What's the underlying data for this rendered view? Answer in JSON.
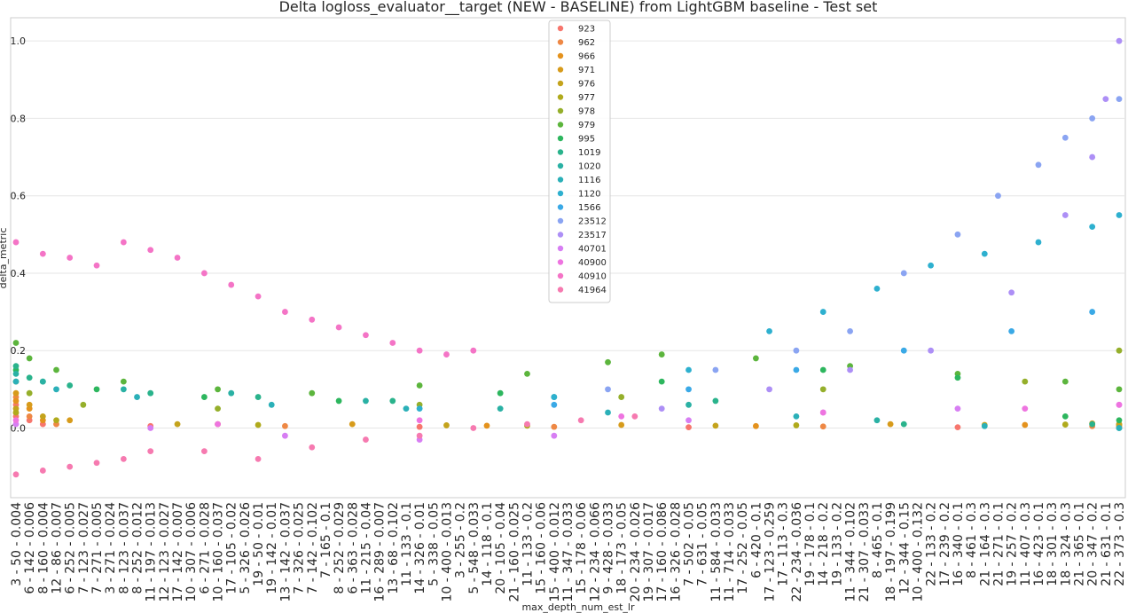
{
  "chart_data": {
    "type": "scatter",
    "title": "Delta logloss_evaluator__target (NEW - BASELINE) from LightGBM baseline - Test set",
    "xlabel": "max_depth_num_est_lr",
    "ylabel": "delta_metric",
    "ylim": [
      -0.18,
      1.06
    ],
    "yticks": [
      0.0,
      0.2,
      0.4,
      0.6,
      0.8,
      1.0
    ],
    "ytick_labels": [
      "0.0",
      "0.2",
      "0.4",
      "0.6",
      "0.8",
      "1.0"
    ],
    "grid": true,
    "legend_position": "top-center",
    "categories": [
      "3 - 50 - 0.004",
      "6 - 142 - 0.006",
      "8 - 160 - 0.004",
      "12 - 86 - 0.007",
      "6 - 252 - 0.005",
      "7 - 123 - 0.027",
      "7 - 271 - 0.005",
      "3 - 271 - 0.024",
      "8 - 123 - 0.037",
      "8 - 252 - 0.012",
      "11 - 197 - 0.013",
      "12 - 123 - 0.027",
      "17 - 142 - 0.007",
      "10 - 307 - 0.006",
      "6 - 271 - 0.028",
      "10 - 160 - 0.037",
      "17 - 105 - 0.02",
      "5 - 326 - 0.026",
      "19 - 50 - 0.01",
      "19 - 142 - 0.01",
      "13 - 142 - 0.037",
      "7 - 326 - 0.025",
      "7 - 142 - 0.102",
      "7 - 165 - 0.1",
      "8 - 252 - 0.029",
      "6 - 363 - 0.028",
      "11 - 215 - 0.04",
      "16 - 289 - 0.007",
      "13 - 68 - 0.102",
      "11 - 133 - 0.1",
      "14 - 326 - 0.01",
      "5 - 338 - 0.05",
      "10 - 400 - 0.013",
      "3 - 255 - 0.2",
      "5 - 548 - 0.033",
      "14 - 118 - 0.1",
      "20 - 105 - 0.04",
      "21 - 160 - 0.025",
      "11 - 133 - 0.2",
      "15 - 160 - 0.06",
      "15 - 400 - 0.012",
      "11 - 347 - 0.033",
      "15 - 178 - 0.06",
      "12 - 234 - 0.066",
      "9 - 428 - 0.033",
      "18 - 173 - 0.05",
      "20 - 234 - 0.026",
      "19 - 307 - 0.017",
      "17 - 160 - 0.086",
      "16 - 326 - 0.028",
      "7 - 502 - 0.05",
      "7 - 631 - 0.05",
      "11 - 584 - 0.033",
      "11 - 714 - 0.033",
      "17 - 252 - 0.05",
      "6 - 420 - 0.1",
      "17 - 123 - 0.259",
      "17 - 113 - 0.3",
      "22 - 234 - 0.036",
      "19 - 178 - 0.1",
      "14 - 218 - 0.2",
      "19 - 133 - 0.2",
      "11 - 344 - 0.102",
      "21 - 307 - 0.033",
      "8 - 465 - 0.1",
      "18 - 197 - 0.199",
      "12 - 344 - 0.15",
      "10 - 400 - 0.132",
      "22 - 133 - 0.2",
      "17 - 239 - 0.2",
      "16 - 340 - 0.1",
      "8 - 461 - 0.3",
      "21 - 164 - 0.3",
      "21 - 271 - 0.1",
      "19 - 257 - 0.2",
      "11 - 407 - 0.3",
      "16 - 423 - 0.1",
      "18 - 301 - 0.3",
      "18 - 324 - 0.3",
      "21 - 365 - 0.1",
      "20 - 347 - 0.2",
      "21 - 631 - 0.1",
      "22 - 373 - 0.3"
    ],
    "series": [
      {
        "name": "923",
        "color": "#f7766d",
        "values": [
          [
            0,
            0.06
          ],
          [
            0,
            0.03
          ],
          [
            1,
            0.02
          ],
          [
            2,
            0.01
          ],
          [
            10,
            0.005
          ],
          [
            30,
            0.003
          ],
          [
            50,
            0.002
          ],
          [
            70,
            0.002
          ],
          [
            82,
            0.003
          ]
        ]
      },
      {
        "name": "962",
        "color": "#ee8845",
        "values": [
          [
            0,
            0.08
          ],
          [
            0,
            0.04
          ],
          [
            1,
            0.03
          ],
          [
            3,
            0.01
          ],
          [
            20,
            0.005
          ],
          [
            40,
            0.003
          ],
          [
            60,
            0.004
          ],
          [
            80,
            0.005
          ],
          [
            82,
            0.006
          ]
        ]
      },
      {
        "name": "966",
        "color": "#e4921d",
        "values": [
          [
            0,
            0.07
          ],
          [
            1,
            0.05
          ],
          [
            2,
            0.02
          ],
          [
            15,
            0.01
          ],
          [
            35,
            0.006
          ],
          [
            55,
            0.005
          ],
          [
            75,
            0.008
          ],
          [
            82,
            0.01
          ]
        ]
      },
      {
        "name": "971",
        "color": "#d79b1b",
        "values": [
          [
            0,
            0.09
          ],
          [
            1,
            0.06
          ],
          [
            4,
            0.02
          ],
          [
            25,
            0.01
          ],
          [
            45,
            0.008
          ],
          [
            65,
            0.01
          ],
          [
            80,
            0.012
          ]
        ]
      },
      {
        "name": "976",
        "color": "#c4a31c",
        "values": [
          [
            0,
            0.05
          ],
          [
            2,
            0.03
          ],
          [
            12,
            0.01
          ],
          [
            32,
            0.007
          ],
          [
            52,
            0.006
          ],
          [
            72,
            0.008
          ],
          [
            82,
            0.009
          ]
        ]
      },
      {
        "name": "977",
        "color": "#b0aa1c",
        "values": [
          [
            0,
            0.04
          ],
          [
            3,
            0.02
          ],
          [
            18,
            0.008
          ],
          [
            38,
            0.006
          ],
          [
            58,
            0.007
          ],
          [
            78,
            0.009
          ]
        ]
      },
      {
        "name": "978",
        "color": "#95af2b",
        "values": [
          [
            0,
            0.12
          ],
          [
            1,
            0.09
          ],
          [
            5,
            0.06
          ],
          [
            15,
            0.05
          ],
          [
            30,
            0.06
          ],
          [
            45,
            0.08
          ],
          [
            60,
            0.1
          ],
          [
            75,
            0.12
          ],
          [
            82,
            0.2
          ]
        ]
      },
      {
        "name": "979",
        "color": "#5cb53d",
        "values": [
          [
            0,
            0.22
          ],
          [
            1,
            0.18
          ],
          [
            3,
            0.15
          ],
          [
            8,
            0.12
          ],
          [
            15,
            0.1
          ],
          [
            22,
            0.09
          ],
          [
            30,
            0.11
          ],
          [
            38,
            0.14
          ],
          [
            44,
            0.17
          ],
          [
            48,
            0.19
          ],
          [
            55,
            0.18
          ],
          [
            62,
            0.16
          ],
          [
            70,
            0.14
          ],
          [
            78,
            0.12
          ],
          [
            82,
            0.1
          ]
        ]
      },
      {
        "name": "995",
        "color": "#2db65e",
        "values": [
          [
            0,
            0.15
          ],
          [
            2,
            0.12
          ],
          [
            6,
            0.1
          ],
          [
            14,
            0.08
          ],
          [
            24,
            0.07
          ],
          [
            36,
            0.09
          ],
          [
            48,
            0.12
          ],
          [
            60,
            0.15
          ],
          [
            70,
            0.13
          ],
          [
            78,
            0.03
          ],
          [
            82,
            0.02
          ]
        ]
      },
      {
        "name": "1019",
        "color": "#2ab38c",
        "values": [
          [
            0,
            0.16
          ],
          [
            1,
            0.13
          ],
          [
            4,
            0.11
          ],
          [
            10,
            0.09
          ],
          [
            18,
            0.08
          ],
          [
            28,
            0.07
          ],
          [
            40,
            0.08
          ],
          [
            52,
            0.07
          ],
          [
            66,
            0.01
          ],
          [
            80,
            0.01
          ]
        ]
      },
      {
        "name": "1020",
        "color": "#2ab1a4",
        "values": [
          [
            0,
            0.14
          ],
          [
            2,
            0.12
          ],
          [
            8,
            0.1
          ],
          [
            16,
            0.09
          ],
          [
            26,
            0.07
          ],
          [
            36,
            0.05
          ],
          [
            50,
            0.06
          ],
          [
            64,
            0.02
          ],
          [
            82,
            0.0
          ]
        ]
      },
      {
        "name": "1116",
        "color": "#2bb0b8",
        "values": [
          [
            0,
            0.12
          ],
          [
            3,
            0.1
          ],
          [
            9,
            0.08
          ],
          [
            19,
            0.06
          ],
          [
            29,
            0.05
          ],
          [
            44,
            0.04
          ],
          [
            58,
            0.03
          ],
          [
            72,
            0.005
          ],
          [
            82,
            0.0
          ]
        ]
      },
      {
        "name": "1120",
        "color": "#2eb0cf",
        "values": [
          [
            30,
            0.05
          ],
          [
            40,
            0.08
          ],
          [
            50,
            0.15
          ],
          [
            56,
            0.25
          ],
          [
            60,
            0.3
          ],
          [
            64,
            0.36
          ],
          [
            68,
            0.42
          ],
          [
            72,
            0.45
          ],
          [
            76,
            0.48
          ],
          [
            80,
            0.52
          ],
          [
            82,
            0.55
          ]
        ]
      },
      {
        "name": "1566",
        "color": "#3aa9e6",
        "values": [
          [
            40,
            0.06
          ],
          [
            50,
            0.1
          ],
          [
            58,
            0.15
          ],
          [
            66,
            0.2
          ],
          [
            74,
            0.25
          ],
          [
            80,
            0.3
          ]
        ]
      },
      {
        "name": "23512",
        "color": "#8aa4f2",
        "values": [
          [
            44,
            0.1
          ],
          [
            52,
            0.15
          ],
          [
            58,
            0.2
          ],
          [
            62,
            0.25
          ],
          [
            66,
            0.4
          ],
          [
            70,
            0.5
          ],
          [
            73,
            0.6
          ],
          [
            76,
            0.68
          ],
          [
            78,
            0.75
          ],
          [
            80,
            0.8
          ],
          [
            82,
            0.85
          ]
        ]
      },
      {
        "name": "23517",
        "color": "#ad8ff6",
        "values": [
          [
            48,
            0.05
          ],
          [
            56,
            0.1
          ],
          [
            62,
            0.15
          ],
          [
            68,
            0.2
          ],
          [
            74,
            0.35
          ],
          [
            78,
            0.55
          ],
          [
            80,
            0.7
          ],
          [
            81,
            0.85
          ],
          [
            82,
            1.0
          ]
        ]
      },
      {
        "name": "40701",
        "color": "#d77ef3",
        "values": [
          [
            0,
            0.01
          ],
          [
            10,
            0.0
          ],
          [
            20,
            -0.02
          ],
          [
            30,
            -0.03
          ],
          [
            40,
            -0.02
          ],
          [
            50,
            0.02
          ],
          [
            60,
            0.04
          ],
          [
            70,
            0.05
          ],
          [
            82,
            0.06
          ]
        ]
      },
      {
        "name": "40900",
        "color": "#ee74e0",
        "values": [
          [
            0,
            0.02
          ],
          [
            15,
            0.01
          ],
          [
            30,
            0.02
          ],
          [
            45,
            0.03
          ],
          [
            60,
            0.04
          ],
          [
            75,
            0.05
          ],
          [
            82,
            0.06
          ]
        ]
      },
      {
        "name": "40910",
        "color": "#f474c6",
        "values": [
          [
            0,
            0.48
          ],
          [
            2,
            0.45
          ],
          [
            4,
            0.44
          ],
          [
            6,
            0.42
          ],
          [
            8,
            0.48
          ],
          [
            10,
            0.46
          ],
          [
            12,
            0.44
          ],
          [
            14,
            0.4
          ],
          [
            16,
            0.37
          ],
          [
            18,
            0.34
          ],
          [
            20,
            0.3
          ],
          [
            22,
            0.28
          ],
          [
            24,
            0.26
          ],
          [
            26,
            0.24
          ],
          [
            28,
            0.22
          ],
          [
            30,
            0.2
          ],
          [
            32,
            0.19
          ],
          [
            34,
            0.2
          ]
        ]
      },
      {
        "name": "41964",
        "color": "#f67ab0",
        "values": [
          [
            0,
            -0.12
          ],
          [
            2,
            -0.11
          ],
          [
            4,
            -0.1
          ],
          [
            6,
            -0.09
          ],
          [
            8,
            -0.08
          ],
          [
            10,
            -0.06
          ],
          [
            14,
            -0.06
          ],
          [
            18,
            -0.08
          ],
          [
            22,
            -0.05
          ],
          [
            26,
            -0.03
          ],
          [
            30,
            -0.02
          ],
          [
            34,
            0.0
          ],
          [
            38,
            0.01
          ],
          [
            42,
            0.02
          ],
          [
            46,
            0.03
          ]
        ]
      }
    ]
  }
}
